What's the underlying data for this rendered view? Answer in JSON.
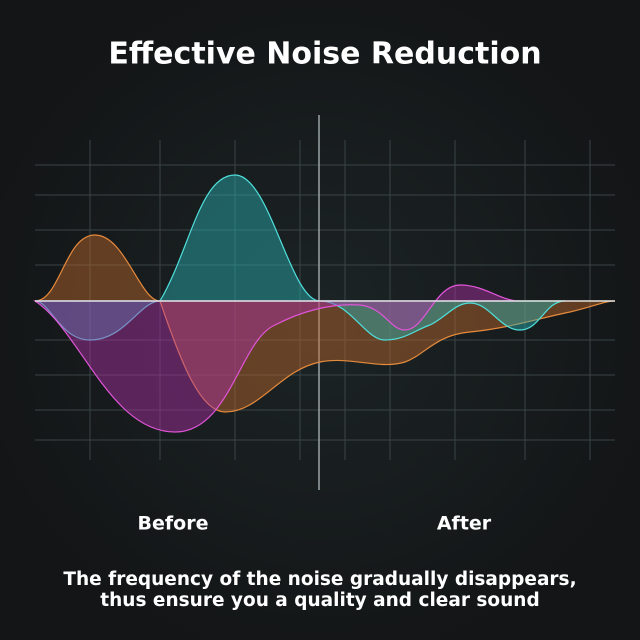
{
  "header": {
    "title": "Effective Noise Reduction"
  },
  "labels": {
    "before": "Before",
    "after": "After"
  },
  "caption": [
    "The frequency of the noise gradually disappears,",
    "thus ensure you a quality and clear sound"
  ]
}
